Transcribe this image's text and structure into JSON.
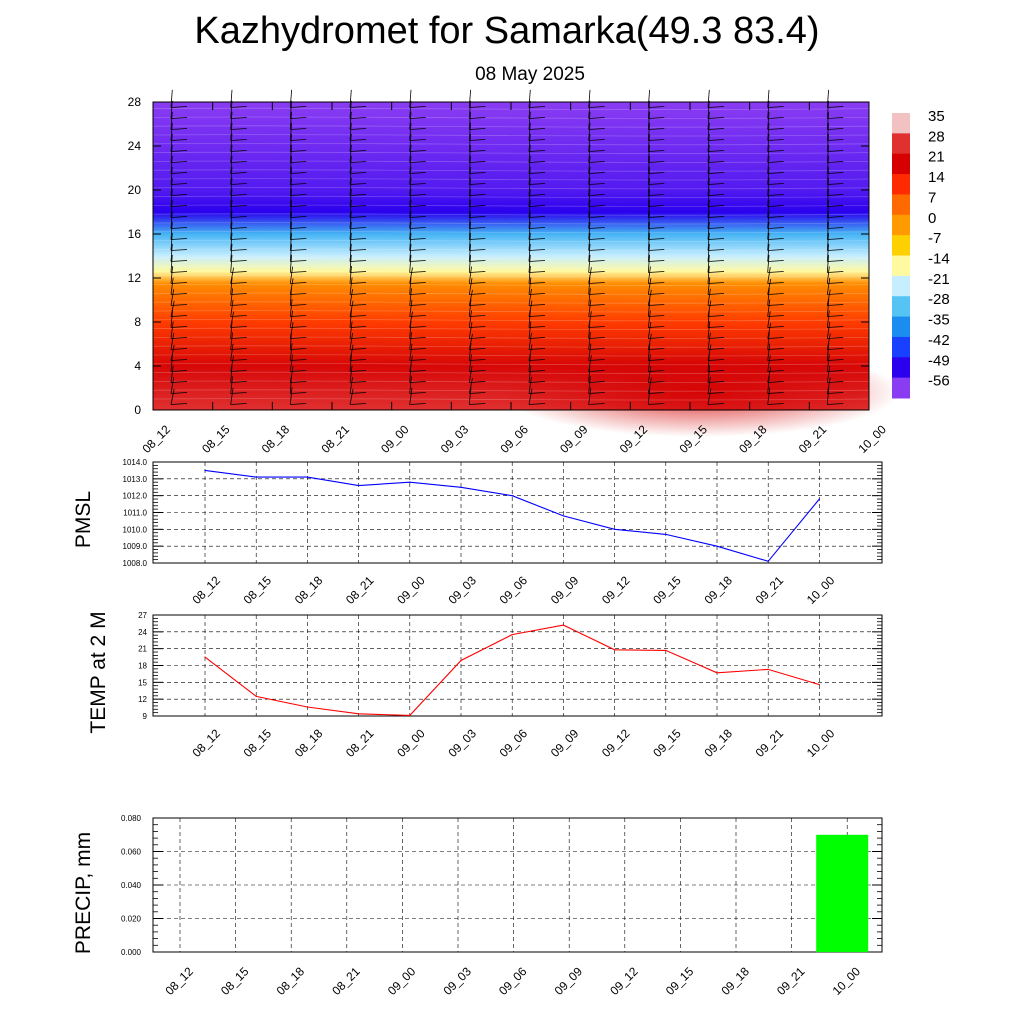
{
  "header": {
    "title": "Kazhydromet for Samarka(49.3 83.4)",
    "date": "08 May 2025"
  },
  "colors": {
    "pressure_line": "#0000ff",
    "temperature_line": "#ff0000",
    "precip_bar": "#00ff00",
    "grid": "#000000"
  },
  "chart_data": [
    {
      "type": "heatmap",
      "name": "temperature-cross-section",
      "title": "",
      "x_ticks": [
        "08_12",
        "08_15",
        "08_18",
        "08_21",
        "09_00",
        "09_03",
        "09_06",
        "09_09",
        "09_12",
        "09_15",
        "09_18",
        "09_21",
        "10_00"
      ],
      "y_ticks": [
        0,
        4,
        8,
        12,
        16,
        20,
        24,
        28
      ],
      "ylim": [
        0,
        28
      ],
      "colorbar": {
        "labels": [
          35,
          28,
          21,
          14,
          7,
          0,
          -7,
          -14,
          -21,
          -28,
          -35,
          -42,
          -49,
          -56
        ],
        "colors": [
          "#f2c1c1",
          "#e03030",
          "#d60000",
          "#ff2a00",
          "#ff6a00",
          "#ff9b00",
          "#ffd000",
          "#fff9a0",
          "#c6eeff",
          "#55c4f5",
          "#1b8df0",
          "#1a40ff",
          "#2a00ee",
          "#8a3cf2"
        ]
      },
      "profile": [
        {
          "level": 0,
          "temp": 28
        },
        {
          "level": 4,
          "temp": 22
        },
        {
          "level": 8,
          "temp": 12
        },
        {
          "level": 11.5,
          "temp": 2
        },
        {
          "level": 12.6,
          "temp": -14
        },
        {
          "level": 14,
          "temp": -21
        },
        {
          "level": 16,
          "temp": -30
        },
        {
          "level": 18,
          "temp": -49
        },
        {
          "level": 20,
          "temp": -52
        },
        {
          "level": 24,
          "temp": -54
        },
        {
          "level": 28,
          "temp": -56
        }
      ],
      "wind_barbs": true
    },
    {
      "type": "line",
      "name": "pressure",
      "ylabel": "PMSL",
      "x": [
        "08_12",
        "08_15",
        "08_18",
        "08_21",
        "09_00",
        "09_03",
        "09_06",
        "09_09",
        "09_12",
        "09_15",
        "09_18",
        "09_21",
        "10_00"
      ],
      "values": [
        1013.5,
        1013.1,
        1013.1,
        1012.6,
        1012.8,
        1012.5,
        1012.0,
        1010.8,
        1010.0,
        1009.7,
        1009.0,
        1008.1,
        1011.8
      ],
      "ylim": [
        1008.0,
        1014.0
      ],
      "y_ticks": [
        "1008.0",
        "1009.0",
        "1010.0",
        "1011.0",
        "1012.0",
        "1013.0",
        "1014.0"
      ],
      "grid": true
    },
    {
      "type": "line",
      "name": "temperature",
      "ylabel": "TEMP at 2 M",
      "x": [
        "08_12",
        "08_15",
        "08_18",
        "08_21",
        "09_00",
        "09_03",
        "09_06",
        "09_09",
        "09_12",
        "09_15",
        "09_18",
        "09_21",
        "10_00"
      ],
      "values": [
        19.5,
        12.5,
        10.6,
        9.4,
        9.1,
        18.9,
        23.5,
        25.2,
        20.8,
        20.7,
        16.7,
        17.3,
        14.6
      ],
      "ylim": [
        9,
        27
      ],
      "y_ticks": [
        "9",
        "12",
        "15",
        "18",
        "21",
        "24",
        "27"
      ],
      "grid": true
    },
    {
      "type": "bar",
      "name": "precipitation",
      "ylabel": "PRECIP, mm",
      "categories": [
        "08_12",
        "08_15",
        "08_18",
        "08_21",
        "09_00",
        "09_03",
        "09_06",
        "09_09",
        "09_12",
        "09_15",
        "09_18",
        "09_21",
        "10_00"
      ],
      "values": [
        0,
        0,
        0,
        0,
        0,
        0,
        0,
        0,
        0,
        0,
        0,
        0,
        0.07
      ],
      "ylim": [
        0,
        0.08
      ],
      "y_ticks": [
        "0.000",
        "0.020",
        "0.040",
        "0.060",
        "0.080"
      ],
      "grid": true
    }
  ]
}
